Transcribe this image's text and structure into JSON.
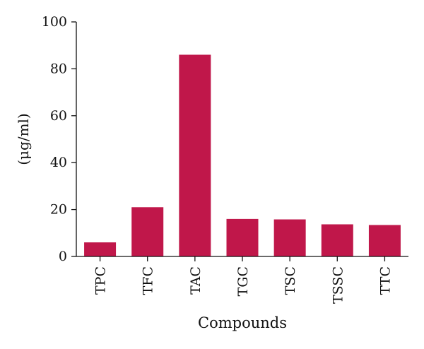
{
  "chart_data": {
    "type": "bar",
    "title": "",
    "xlabel": "Compounds",
    "ylabel": "(μg/ml)",
    "categories": [
      "TPC",
      "TFC",
      "TAC",
      "TGC",
      "TSC",
      "TSSC",
      "TTC"
    ],
    "values": [
      6,
      21,
      86,
      16,
      15.8,
      13.7,
      13.4
    ],
    "ylim": [
      0,
      100
    ],
    "yticks": [
      0,
      20,
      40,
      60,
      80,
      100
    ],
    "grid": false,
    "legend": "none",
    "bar_color": "#C0174A",
    "axis_color": "#111111"
  }
}
